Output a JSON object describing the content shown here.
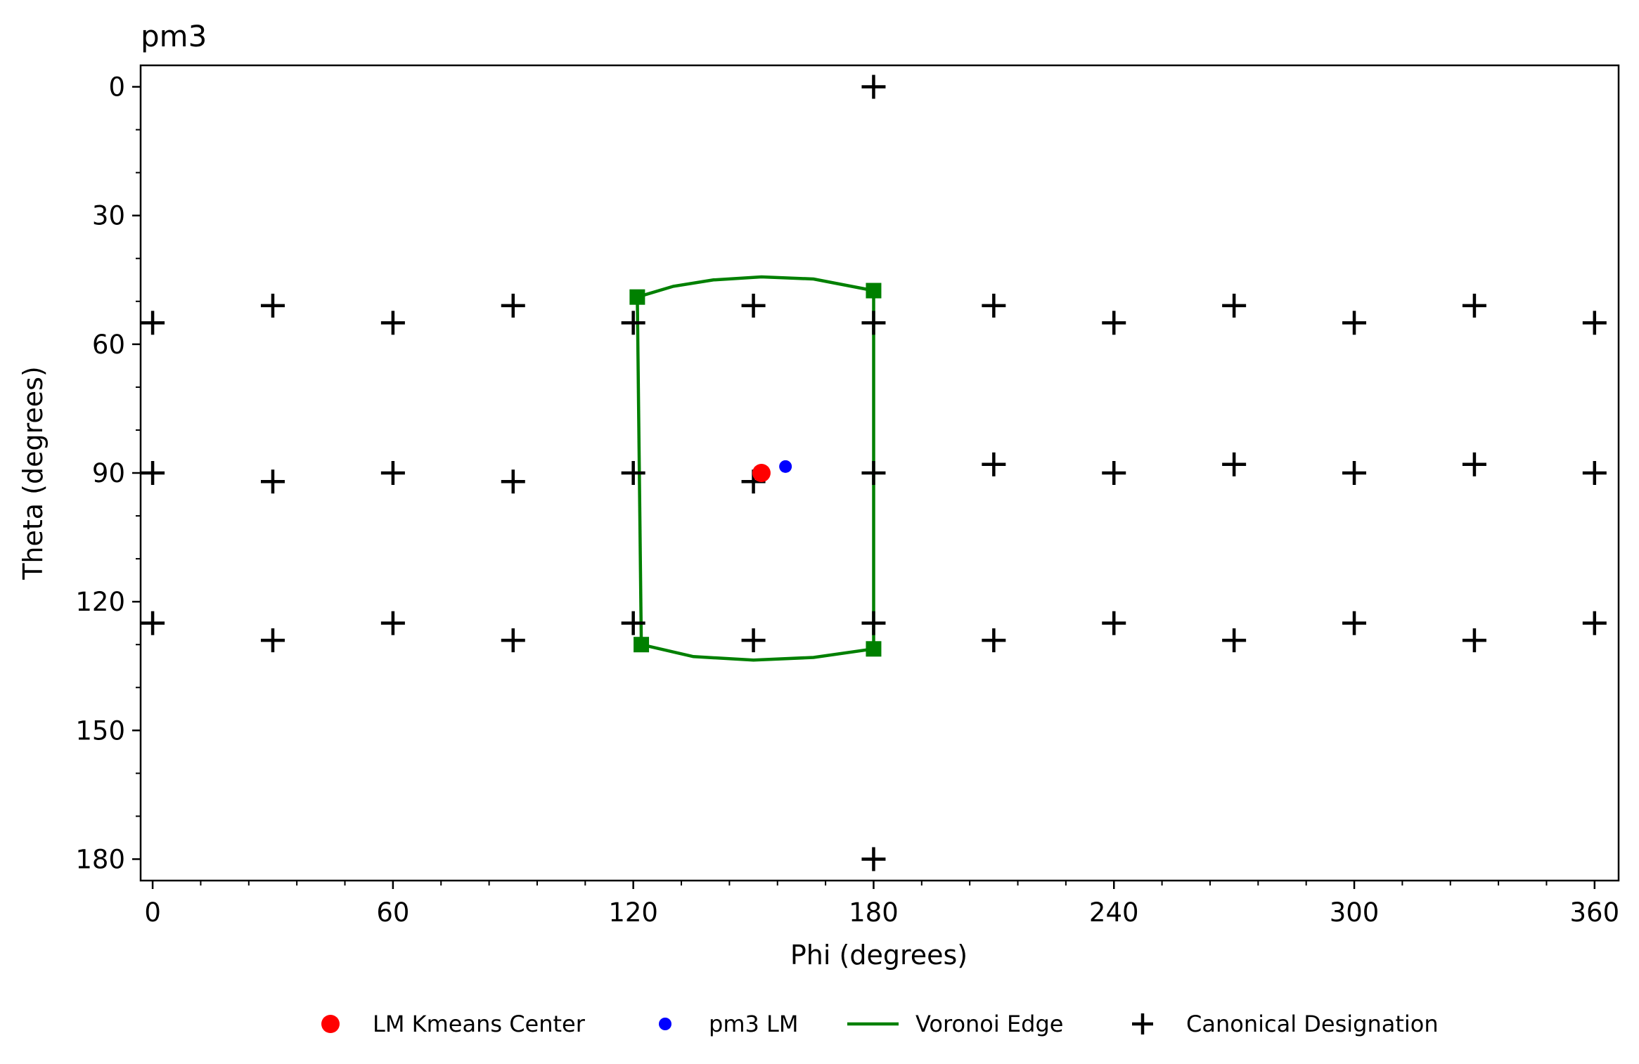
{
  "chart_data": {
    "type": "scatter",
    "title": "pm3",
    "xlabel": "Phi (degrees)",
    "ylabel": "Theta (degrees)",
    "xlim": [
      -3,
      366
    ],
    "ylim": [
      185,
      -5
    ],
    "y_inverted": true,
    "xticks": [
      0,
      60,
      120,
      180,
      240,
      300,
      360
    ],
    "yticks": [
      0,
      30,
      60,
      90,
      120,
      150,
      180
    ],
    "x_minor_step": 12,
    "y_minor_step": 10,
    "grid": false,
    "legend_position": "bottom-center",
    "colors": {
      "kmeans": "#ff0000",
      "lm": "#0000ff",
      "voronoi": "#008000",
      "canonical": "#000000"
    },
    "series": [
      {
        "name": "LM Kmeans Center",
        "marker": "circle",
        "points": [
          [
            152,
            90
          ]
        ]
      },
      {
        "name": "pm3 LM",
        "marker": "small-circle",
        "points": [
          [
            158,
            88.5
          ]
        ]
      },
      {
        "name": "Voronoi Edge",
        "marker": "line",
        "vertices": [
          [
            121,
            49
          ],
          [
            180,
            47.5
          ],
          [
            180,
            131
          ],
          [
            122,
            130
          ]
        ],
        "edges": [
          {
            "points": [
              [
                121,
                49
              ],
              [
                130,
                46.5
              ],
              [
                140,
                45
              ],
              [
                152,
                44.3
              ],
              [
                165,
                44.8
              ],
              [
                180,
                47.5
              ]
            ]
          },
          {
            "points": [
              [
                180,
                47.5
              ],
              [
                180,
                131
              ]
            ]
          },
          {
            "points": [
              [
                122,
                130
              ],
              [
                135,
                132.8
              ],
              [
                150,
                133.6
              ],
              [
                165,
                133
              ],
              [
                180,
                131
              ]
            ]
          },
          {
            "points": [
              [
                121,
                49
              ],
              [
                122,
                130
              ]
            ]
          }
        ]
      },
      {
        "name": "Canonical Designation",
        "marker": "plus",
        "points": [
          [
            180,
            0
          ],
          [
            180,
            180
          ],
          [
            0,
            55
          ],
          [
            30,
            51
          ],
          [
            60,
            55
          ],
          [
            90,
            51
          ],
          [
            120,
            55
          ],
          [
            150,
            51
          ],
          [
            180,
            55
          ],
          [
            210,
            51
          ],
          [
            240,
            55
          ],
          [
            270,
            51
          ],
          [
            300,
            55
          ],
          [
            330,
            51
          ],
          [
            360,
            55
          ],
          [
            0,
            90
          ],
          [
            30,
            92
          ],
          [
            60,
            90
          ],
          [
            90,
            92
          ],
          [
            120,
            90
          ],
          [
            150,
            92
          ],
          [
            180,
            90
          ],
          [
            210,
            88
          ],
          [
            240,
            90
          ],
          [
            270,
            88
          ],
          [
            300,
            90
          ],
          [
            330,
            88
          ],
          [
            360,
            90
          ],
          [
            0,
            125
          ],
          [
            30,
            129
          ],
          [
            60,
            125
          ],
          [
            90,
            129
          ],
          [
            120,
            125
          ],
          [
            150,
            129
          ],
          [
            180,
            125
          ],
          [
            210,
            129
          ],
          [
            240,
            125
          ],
          [
            270,
            129
          ],
          [
            300,
            125
          ],
          [
            330,
            129
          ],
          [
            360,
            125
          ]
        ]
      }
    ]
  }
}
